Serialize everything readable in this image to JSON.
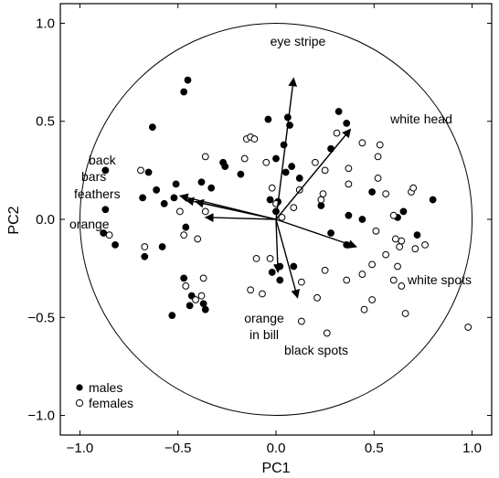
{
  "chart_data": {
    "type": "scatter",
    "title": "",
    "xlabel": "PC1",
    "ylabel": "PC2",
    "xlim": [
      -1.1,
      1.1
    ],
    "ylim": [
      -1.1,
      1.1
    ],
    "xticks": [
      "−1.0",
      "−0.5",
      "0.0",
      "0.5",
      "1.0"
    ],
    "yticks": [
      "−1.0",
      "−0.5",
      "0.0",
      "0.5",
      "1.0"
    ],
    "xtick_values": [
      -1.0,
      -0.5,
      0.0,
      0.5,
      1.0
    ],
    "ytick_values": [
      -1.0,
      -0.5,
      0.0,
      0.5,
      1.0
    ],
    "grid": false,
    "legend_position": "bottom-left",
    "unit_circle_radius": 1.0,
    "series": [
      {
        "name": "males",
        "marker": "filled-circle",
        "color": "#000000",
        "points": [
          [
            -0.47,
            0.65
          ],
          [
            -0.45,
            0.71
          ],
          [
            -0.63,
            0.47
          ],
          [
            -0.65,
            0.24
          ],
          [
            -0.87,
            0.25
          ],
          [
            -0.68,
            0.11
          ],
          [
            -0.61,
            0.15
          ],
          [
            -0.52,
            0.11
          ],
          [
            -0.57,
            0.08
          ],
          [
            -0.87,
            0.05
          ],
          [
            -0.88,
            -0.07
          ],
          [
            -0.82,
            -0.13
          ],
          [
            -0.67,
            -0.19
          ],
          [
            -0.58,
            -0.14
          ],
          [
            -0.46,
            -0.04
          ],
          [
            -0.51,
            0.18
          ],
          [
            -0.38,
            0.19
          ],
          [
            -0.33,
            0.16
          ],
          [
            -0.27,
            0.29
          ],
          [
            -0.26,
            0.27
          ],
          [
            -0.18,
            0.23
          ],
          [
            -0.04,
            0.51
          ],
          [
            0.06,
            0.52
          ],
          [
            0.07,
            0.48
          ],
          [
            0.04,
            0.38
          ],
          [
            0.0,
            0.31
          ],
          [
            0.05,
            0.24
          ],
          [
            0.08,
            0.27
          ],
          [
            0.12,
            0.21
          ],
          [
            -0.03,
            0.1
          ],
          [
            0.01,
            0.09
          ],
          [
            0.0,
            0.04
          ],
          [
            -0.47,
            -0.3
          ],
          [
            -0.43,
            -0.39
          ],
          [
            -0.44,
            -0.44
          ],
          [
            -0.37,
            -0.43
          ],
          [
            -0.36,
            -0.46
          ],
          [
            -0.53,
            -0.49
          ],
          [
            -0.02,
            -0.27
          ],
          [
            0.02,
            -0.31
          ],
          [
            0.09,
            -0.24
          ],
          [
            0.02,
            -0.24
          ],
          [
            0.23,
            0.07
          ],
          [
            0.28,
            0.36
          ],
          [
            0.32,
            0.55
          ],
          [
            0.36,
            0.49
          ],
          [
            0.49,
            0.14
          ],
          [
            0.65,
            0.04
          ],
          [
            0.8,
            0.1
          ],
          [
            0.37,
            0.02
          ],
          [
            0.44,
            0.0
          ],
          [
            0.28,
            -0.07
          ],
          [
            0.36,
            -0.13
          ],
          [
            0.62,
            0.01
          ],
          [
            0.72,
            -0.08
          ]
        ]
      },
      {
        "name": "females",
        "marker": "open-circle",
        "color": "#000000",
        "points": [
          [
            -0.69,
            0.25
          ],
          [
            -0.67,
            -0.14
          ],
          [
            -0.85,
            -0.08
          ],
          [
            -0.49,
            0.04
          ],
          [
            -0.47,
            -0.08
          ],
          [
            -0.4,
            -0.1
          ],
          [
            -0.36,
            0.04
          ],
          [
            -0.36,
            0.32
          ],
          [
            -0.37,
            -0.3
          ],
          [
            -0.38,
            -0.39
          ],
          [
            -0.46,
            -0.34
          ],
          [
            -0.41,
            -0.41
          ],
          [
            -0.15,
            0.41
          ],
          [
            -0.13,
            0.42
          ],
          [
            -0.11,
            0.41
          ],
          [
            -0.16,
            0.31
          ],
          [
            -0.05,
            0.29
          ],
          [
            -0.02,
            0.16
          ],
          [
            0.0,
            0.08
          ],
          [
            0.03,
            0.01
          ],
          [
            0.12,
            0.15
          ],
          [
            0.2,
            0.29
          ],
          [
            0.25,
            0.25
          ],
          [
            0.24,
            0.13
          ],
          [
            0.09,
            0.06
          ],
          [
            0.23,
            0.1
          ],
          [
            -0.1,
            -0.2
          ],
          [
            -0.03,
            -0.2
          ],
          [
            -0.13,
            -0.36
          ],
          [
            -0.07,
            -0.38
          ],
          [
            0.13,
            -0.32
          ],
          [
            0.25,
            -0.26
          ],
          [
            0.36,
            -0.31
          ],
          [
            0.21,
            -0.4
          ],
          [
            0.13,
            -0.52
          ],
          [
            0.26,
            -0.58
          ],
          [
            0.31,
            0.44
          ],
          [
            0.37,
            0.18
          ],
          [
            0.37,
            0.26
          ],
          [
            0.44,
            0.39
          ],
          [
            0.52,
            0.32
          ],
          [
            0.53,
            0.38
          ],
          [
            0.52,
            0.21
          ],
          [
            0.51,
            -0.06
          ],
          [
            0.49,
            -0.23
          ],
          [
            0.44,
            -0.28
          ],
          [
            0.49,
            -0.41
          ],
          [
            0.45,
            -0.46
          ],
          [
            0.6,
            -0.31
          ],
          [
            0.62,
            -0.24
          ],
          [
            0.63,
            -0.14
          ],
          [
            0.64,
            -0.11
          ],
          [
            0.56,
            0.13
          ],
          [
            0.6,
            0.02
          ],
          [
            0.61,
            -0.1
          ],
          [
            0.69,
            0.14
          ],
          [
            0.7,
            0.16
          ],
          [
            0.76,
            -0.13
          ],
          [
            0.66,
            -0.48
          ],
          [
            0.98,
            -0.55
          ],
          [
            0.64,
            -0.34
          ],
          [
            0.56,
            -0.18
          ],
          [
            0.71,
            -0.15
          ]
        ]
      }
    ],
    "loadings": [
      {
        "name": "eye stripe",
        "x": 0.09,
        "y": 0.72
      },
      {
        "name": "white head",
        "x": 0.38,
        "y": 0.46
      },
      {
        "name": "white spots",
        "x": 0.41,
        "y": -0.14
      },
      {
        "name": "black spots",
        "x": 0.11,
        "y": -0.4
      },
      {
        "name": "orange in bill",
        "x": 0.01,
        "y": -0.27
      },
      {
        "name": "back",
        "x": -0.49,
        "y": 0.12
      },
      {
        "name": "bars",
        "x": -0.41,
        "y": 0.09
      },
      {
        "name": "feathers",
        "x": -0.46,
        "y": 0.1
      },
      {
        "name": "orange",
        "x": -0.36,
        "y": 0.01
      }
    ],
    "loading_labels": {
      "eye_stripe": "eye stripe",
      "white_head": "white head",
      "white_spots": "white spots",
      "black_spots": "black spots",
      "orange_in_bill_1": "orange",
      "orange_in_bill_2": "in bill",
      "back": "back",
      "bars": "bars",
      "feathers": "feathers",
      "orange": "orange"
    },
    "legend": [
      {
        "label": "males",
        "marker": "filled-circle"
      },
      {
        "label": "females",
        "marker": "open-circle"
      }
    ]
  }
}
